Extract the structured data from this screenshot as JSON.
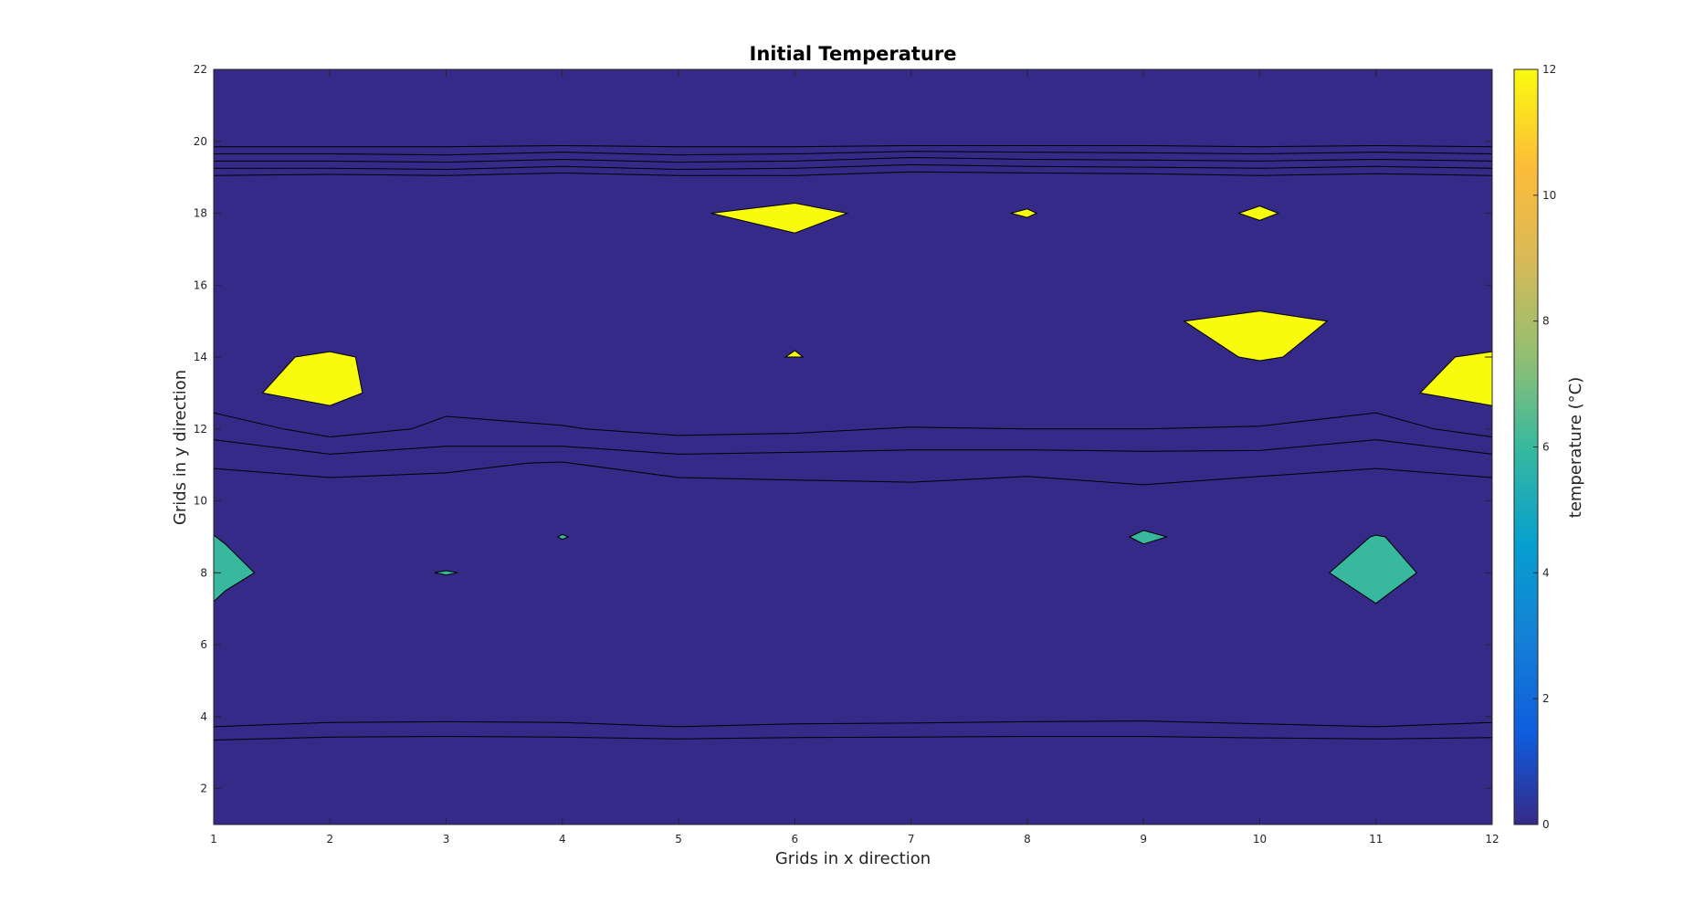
{
  "chart_data": {
    "type": "contourf",
    "title": "Initial Temperature",
    "xlabel": "Grids in x direction",
    "ylabel": "Grids in y direction",
    "colorbar_label": "temperature (°C)",
    "xlim": [
      1,
      12
    ],
    "ylim": [
      1,
      22
    ],
    "xticks": [
      1,
      2,
      3,
      4,
      5,
      6,
      7,
      8,
      9,
      10,
      11,
      12
    ],
    "yticks": [
      2,
      4,
      6,
      8,
      10,
      12,
      14,
      16,
      18,
      20,
      22
    ],
    "colorbar": {
      "range": [
        0,
        12
      ],
      "ticks": [
        0,
        2,
        4,
        6,
        8,
        10,
        12
      ]
    },
    "levels": [
      {
        "range": [
          0,
          1.5
        ],
        "color": "#352A87"
      },
      {
        "range": [
          1.5,
          3
        ],
        "color": "#0F5CDD"
      },
      {
        "range": [
          3,
          4.5
        ],
        "color": "#1481D6"
      },
      {
        "range": [
          4.5,
          6
        ],
        "color": "#069FCF"
      },
      {
        "range": [
          6,
          7.5
        ],
        "color": "#38B99E"
      },
      {
        "range": [
          7.5,
          9
        ],
        "color": "#92BF73"
      },
      {
        "range": [
          9,
          10.5
        ],
        "color": "#D9BA56"
      },
      {
        "range": [
          10.5,
          12
        ],
        "color": "#FCBC3A"
      },
      {
        "range": [
          12,
          13.5
        ],
        "color": "#F9FB0E"
      }
    ],
    "bands": [
      {
        "name": "cold-bottom",
        "color": "#352A87",
        "top": [
          [
            1,
            3.35
          ],
          [
            2,
            3.43
          ],
          [
            3,
            3.45
          ],
          [
            4,
            3.43
          ],
          [
            5,
            3.38
          ],
          [
            6,
            3.42
          ],
          [
            7,
            3.43
          ],
          [
            8,
            3.45
          ],
          [
            9,
            3.45
          ],
          [
            10,
            3.41
          ],
          [
            11,
            3.38
          ],
          [
            12,
            3.42
          ]
        ]
      },
      {
        "name": "dark-blue-bottom",
        "color": "#0F5CDD",
        "top": [
          [
            1,
            3.72
          ],
          [
            2,
            3.84
          ],
          [
            3,
            3.86
          ],
          [
            4,
            3.84
          ],
          [
            5,
            3.72
          ],
          [
            6,
            3.8
          ],
          [
            7,
            3.82
          ],
          [
            8,
            3.86
          ],
          [
            9,
            3.88
          ],
          [
            10,
            3.8
          ],
          [
            11,
            3.72
          ],
          [
            12,
            3.84
          ]
        ]
      },
      {
        "name": "blue-mid",
        "color": "#069FCF",
        "top": [
          [
            1,
            10.9
          ],
          [
            2,
            10.65
          ],
          [
            3,
            10.78
          ],
          [
            3.7,
            11.05
          ],
          [
            4,
            11.08
          ],
          [
            5,
            10.65
          ],
          [
            6,
            10.58
          ],
          [
            7,
            10.52
          ],
          [
            8,
            10.68
          ],
          [
            9,
            10.45
          ],
          [
            10,
            10.68
          ],
          [
            11,
            10.9
          ],
          [
            12,
            10.65
          ]
        ]
      },
      {
        "name": "teal-mid",
        "color": "#38B99E",
        "top": [
          [
            1,
            11.7
          ],
          [
            2,
            11.3
          ],
          [
            3,
            11.52
          ],
          [
            4,
            11.52
          ],
          [
            5,
            11.3
          ],
          [
            6,
            11.35
          ],
          [
            7,
            11.42
          ],
          [
            8,
            11.42
          ],
          [
            9,
            11.38
          ],
          [
            10,
            11.4
          ],
          [
            11,
            11.7
          ],
          [
            12,
            11.3
          ]
        ]
      },
      {
        "name": "green-mid",
        "color": "#92BF73",
        "top": [
          [
            1,
            12.45
          ],
          [
            1.6,
            12.0
          ],
          [
            2,
            11.78
          ],
          [
            2.7,
            12.0
          ],
          [
            3,
            12.35
          ],
          [
            4,
            12.1
          ],
          [
            4.2,
            12.0
          ],
          [
            5,
            11.82
          ],
          [
            6,
            11.88
          ],
          [
            7,
            12.05
          ],
          [
            8,
            12.0
          ],
          [
            9,
            12.0
          ],
          [
            10,
            12.08
          ],
          [
            11,
            12.45
          ],
          [
            11.5,
            12.0
          ],
          [
            12,
            11.78
          ]
        ]
      },
      {
        "name": "orange-upper",
        "color": "#FCBC3A",
        "top": [
          [
            1,
            19.05
          ],
          [
            2,
            19.08
          ],
          [
            3,
            19.05
          ],
          [
            4,
            19.12
          ],
          [
            5,
            19.05
          ],
          [
            6,
            19.05
          ],
          [
            7,
            19.15
          ],
          [
            8,
            19.12
          ],
          [
            9,
            19.1
          ],
          [
            10,
            19.05
          ],
          [
            11,
            19.1
          ],
          [
            12,
            19.05
          ]
        ]
      },
      {
        "name": "green-upper",
        "color": "#92BF73",
        "top": [
          [
            1,
            19.25
          ],
          [
            2,
            19.25
          ],
          [
            3,
            19.22
          ],
          [
            4,
            19.3
          ],
          [
            5,
            19.22
          ],
          [
            6,
            19.25
          ],
          [
            7,
            19.35
          ],
          [
            8,
            19.3
          ],
          [
            9,
            19.28
          ],
          [
            10,
            19.25
          ],
          [
            11,
            19.3
          ],
          [
            12,
            19.25
          ]
        ]
      },
      {
        "name": "teal-upper",
        "color": "#38B99E",
        "top": [
          [
            1,
            19.45
          ],
          [
            2,
            19.45
          ],
          [
            3,
            19.42
          ],
          [
            4,
            19.5
          ],
          [
            5,
            19.42
          ],
          [
            6,
            19.45
          ],
          [
            7,
            19.55
          ],
          [
            8,
            19.5
          ],
          [
            9,
            19.48
          ],
          [
            10,
            19.45
          ],
          [
            11,
            19.5
          ],
          [
            12,
            19.45
          ]
        ]
      },
      {
        "name": "blue-upper",
        "color": "#069FCF",
        "top": [
          [
            1,
            19.65
          ],
          [
            2,
            19.65
          ],
          [
            3,
            19.62
          ],
          [
            4,
            19.7
          ],
          [
            5,
            19.62
          ],
          [
            6,
            19.65
          ],
          [
            7,
            19.72
          ],
          [
            8,
            19.7
          ],
          [
            9,
            19.68
          ],
          [
            10,
            19.65
          ],
          [
            11,
            19.7
          ],
          [
            12,
            19.65
          ]
        ]
      },
      {
        "name": "dark-blue-upper",
        "color": "#0F5CDD",
        "top": [
          [
            1,
            19.85
          ],
          [
            2,
            19.85
          ],
          [
            3,
            19.85
          ],
          [
            4,
            19.88
          ],
          [
            5,
            19.85
          ],
          [
            6,
            19.85
          ],
          [
            7,
            19.88
          ],
          [
            8,
            19.88
          ],
          [
            9,
            19.88
          ],
          [
            10,
            19.85
          ],
          [
            11,
            19.88
          ],
          [
            12,
            19.85
          ]
        ]
      },
      {
        "name": "cold-top",
        "color": "#352A87",
        "top": [
          [
            1,
            22
          ],
          [
            12,
            22
          ]
        ]
      }
    ],
    "patches": [
      {
        "name": "hot-patch-1",
        "color": "#F9FB0E",
        "points": [
          [
            1.42,
            13.0
          ],
          [
            1.7,
            14.0
          ],
          [
            2,
            14.15
          ],
          [
            2.22,
            14.0
          ],
          [
            2.28,
            13.0
          ],
          [
            2,
            12.65
          ]
        ]
      },
      {
        "name": "hot-patch-2",
        "color": "#F9FB0E",
        "points": [
          [
            5.28,
            18.0
          ],
          [
            6,
            18.28
          ],
          [
            6.45,
            18.0
          ],
          [
            6,
            17.45
          ]
        ]
      },
      {
        "name": "hot-patch-3",
        "color": "#F9FB0E",
        "points": [
          [
            7.86,
            18.0
          ],
          [
            8,
            18.12
          ],
          [
            8.08,
            18.0
          ],
          [
            8,
            17.88
          ]
        ]
      },
      {
        "name": "hot-patch-4",
        "color": "#F9FB0E",
        "points": [
          [
            9.82,
            18.0
          ],
          [
            10,
            18.2
          ],
          [
            10.16,
            18.0
          ],
          [
            10,
            17.8
          ]
        ]
      },
      {
        "name": "hot-patch-5",
        "color": "#F9FB0E",
        "points": [
          [
            5.92,
            14.0
          ],
          [
            6,
            14.18
          ],
          [
            6.07,
            14.0
          ]
        ]
      },
      {
        "name": "hot-patch-6",
        "color": "#F9FB0E",
        "points": [
          [
            9.35,
            15.0
          ],
          [
            10,
            15.28
          ],
          [
            10.58,
            15.0
          ],
          [
            10.2,
            14.0
          ],
          [
            10,
            13.9
          ],
          [
            9.82,
            14.0
          ]
        ]
      },
      {
        "name": "hot-patch-7",
        "color": "#F9FB0E",
        "points": [
          [
            11.38,
            13.0
          ],
          [
            11.68,
            14.0
          ],
          [
            12,
            14.15
          ],
          [
            12,
            12.65
          ]
        ]
      },
      {
        "name": "warm-patch-1",
        "color": "#38B99E",
        "points": [
          [
            1,
            9.05
          ],
          [
            1.1,
            8.8
          ],
          [
            1.35,
            8.0
          ],
          [
            1.1,
            7.5
          ],
          [
            1,
            7.2
          ]
        ]
      },
      {
        "name": "warm-patch-2",
        "color": "#38B99E",
        "points": [
          [
            2.9,
            8.0
          ],
          [
            3,
            8.06
          ],
          [
            3.1,
            8.0
          ],
          [
            3,
            7.94
          ]
        ]
      },
      {
        "name": "warm-patch-3",
        "color": "#38B99E",
        "points": [
          [
            3.96,
            9.0
          ],
          [
            4,
            9.07
          ],
          [
            4.05,
            9.0
          ],
          [
            4,
            8.93
          ]
        ]
      },
      {
        "name": "warm-patch-4",
        "color": "#38B99E",
        "points": [
          [
            8.88,
            9.0
          ],
          [
            9,
            9.18
          ],
          [
            9.2,
            9.0
          ],
          [
            9,
            8.8
          ]
        ]
      },
      {
        "name": "warm-patch-5",
        "color": "#38B99E",
        "points": [
          [
            10.6,
            8.0
          ],
          [
            10.95,
            9.0
          ],
          [
            11,
            9.05
          ],
          [
            11.08,
            9.0
          ],
          [
            11.35,
            8.0
          ],
          [
            11,
            7.15
          ]
        ]
      }
    ]
  }
}
